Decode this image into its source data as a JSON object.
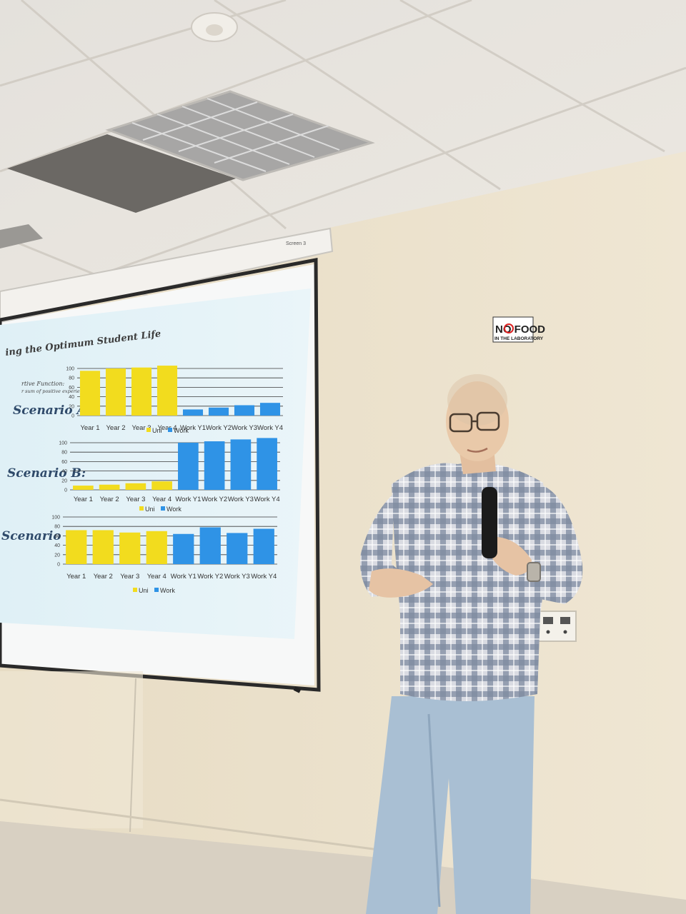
{
  "screen_label": "Screen 3",
  "slide": {
    "title": "ing the Optimum Student Life",
    "objective_label": "rtive Function:",
    "objective_sub": "r sum of positive experience",
    "colors": {
      "uni": "#f2dc1e",
      "work": "#2f93e6",
      "slide_bg": "#e6f3f8"
    }
  },
  "sign": {
    "line1": "NO FOOD",
    "line2": "IN THE LABORATORY"
  },
  "chart_data": [
    {
      "type": "bar",
      "title": "Scenario A:",
      "categories": [
        "Year 1",
        "Year 2",
        "Year 3",
        "Year 4",
        "Work Y1",
        "Work Y2",
        "Work Y3",
        "Work Y4"
      ],
      "series": [
        {
          "name": "Uni",
          "values": [
            95,
            100,
            102,
            106,
            null,
            null,
            null,
            null
          ]
        },
        {
          "name": "Work",
          "values": [
            null,
            null,
            null,
            null,
            13,
            17,
            22,
            27
          ]
        }
      ],
      "yticks": [
        0,
        20,
        40,
        60,
        80,
        100
      ],
      "ylim": [
        0,
        100
      ],
      "legend": "bottom"
    },
    {
      "type": "bar",
      "title": "Scenario B:",
      "categories": [
        "Year 1",
        "Year 2",
        "Year 3",
        "Year 4",
        "Work Y1",
        "Work Y2",
        "Work Y3",
        "Work Y4"
      ],
      "series": [
        {
          "name": "Uni",
          "values": [
            9,
            11,
            14,
            18,
            null,
            null,
            null,
            null
          ]
        },
        {
          "name": "Work",
          "values": [
            null,
            null,
            null,
            null,
            100,
            103,
            107,
            110
          ]
        }
      ],
      "yticks": [
        0,
        20,
        40,
        60,
        80,
        100
      ],
      "ylim": [
        0,
        100
      ],
      "legend": "bottom"
    },
    {
      "type": "bar",
      "title": "Scenario C:",
      "categories": [
        "Year 1",
        "Year 2",
        "Year 3",
        "Year 4",
        "Work Y1",
        "Work Y2",
        "Work Y3",
        "Work Y4"
      ],
      "series": [
        {
          "name": "Uni",
          "values": [
            72,
            72,
            67,
            70,
            null,
            null,
            null,
            null
          ]
        },
        {
          "name": "Work",
          "values": [
            null,
            null,
            null,
            null,
            64,
            78,
            66,
            75
          ]
        }
      ],
      "yticks": [
        0,
        20,
        40,
        60,
        80,
        100
      ],
      "ylim": [
        0,
        100
      ],
      "legend": "bottom"
    }
  ]
}
